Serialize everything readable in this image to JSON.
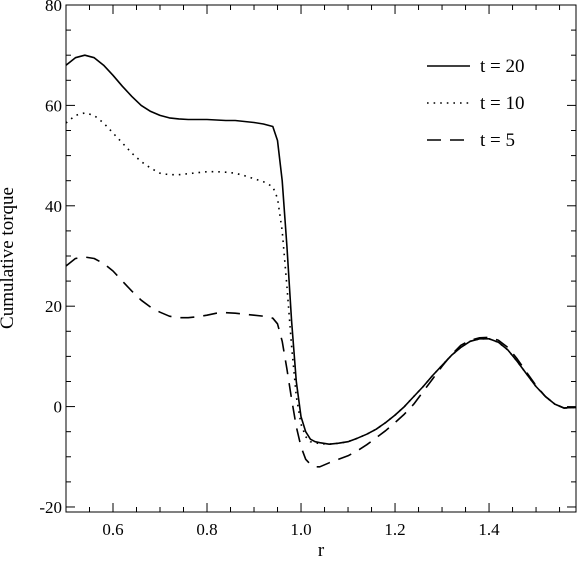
{
  "chart_data": {
    "type": "line",
    "title": "",
    "xlabel": "r",
    "ylabel": "Cumulative torque",
    "xlim": [
      0.5,
      1.585
    ],
    "ylim": [
      -21,
      80
    ],
    "x_ticks": [
      0.6,
      0.8,
      1.0,
      1.2,
      1.4
    ],
    "x_tick_labels": [
      "0.6",
      "0.8",
      "1.0",
      "1.2",
      "1.4"
    ],
    "y_ticks": [
      -20,
      0,
      20,
      40,
      60,
      80
    ],
    "y_tick_labels": [
      "-20",
      "0",
      "20",
      "40",
      "60",
      "80"
    ],
    "grid": false,
    "legend_position": "top-right",
    "series": [
      {
        "name": "t = 20",
        "style": "solid",
        "color": "#000000",
        "x": [
          0.5,
          0.52,
          0.54,
          0.56,
          0.58,
          0.6,
          0.62,
          0.64,
          0.66,
          0.68,
          0.7,
          0.72,
          0.74,
          0.76,
          0.78,
          0.8,
          0.82,
          0.84,
          0.86,
          0.88,
          0.9,
          0.92,
          0.94,
          0.95,
          0.96,
          0.97,
          0.98,
          0.99,
          1.0,
          1.01,
          1.02,
          1.03,
          1.04,
          1.06,
          1.08,
          1.1,
          1.12,
          1.14,
          1.16,
          1.18,
          1.2,
          1.22,
          1.24,
          1.26,
          1.28,
          1.3,
          1.32,
          1.34,
          1.36,
          1.38,
          1.4,
          1.42,
          1.44,
          1.46,
          1.48,
          1.5,
          1.52,
          1.54,
          1.56,
          1.57,
          1.585
        ],
        "y": [
          68,
          69.5,
          70,
          69.5,
          68,
          66,
          63.8,
          61.8,
          60,
          58.8,
          58,
          57.5,
          57.3,
          57.2,
          57.2,
          57.2,
          57.1,
          57,
          57,
          56.8,
          56.6,
          56.3,
          55.8,
          53,
          45,
          32,
          17,
          5,
          -2,
          -5,
          -6.5,
          -7,
          -7.2,
          -7.5,
          -7.3,
          -7,
          -6.3,
          -5.5,
          -4.5,
          -3.2,
          -1.7,
          0,
          2,
          4,
          6.2,
          8.2,
          10.2,
          11.8,
          13,
          13.5,
          13.5,
          12.8,
          11.3,
          9,
          6.5,
          4,
          2,
          0.5,
          -0.3,
          -0.2,
          -0.2
        ]
      },
      {
        "name": "t = 10",
        "style": "dotted",
        "color": "#000000",
        "x": [
          0.5,
          0.52,
          0.54,
          0.56,
          0.58,
          0.6,
          0.62,
          0.64,
          0.66,
          0.68,
          0.7,
          0.72,
          0.74,
          0.76,
          0.78,
          0.8,
          0.82,
          0.84,
          0.86,
          0.88,
          0.9,
          0.92,
          0.94,
          0.95,
          0.96,
          0.97,
          0.98,
          0.99,
          1.0,
          1.01,
          1.02,
          1.03,
          1.04,
          1.06,
          1.08,
          1.1,
          1.12,
          1.14,
          1.16,
          1.18,
          1.2,
          1.22,
          1.24,
          1.26,
          1.28,
          1.3,
          1.32,
          1.34,
          1.36,
          1.38,
          1.4,
          1.42,
          1.44,
          1.46,
          1.48,
          1.5,
          1.52,
          1.54,
          1.56,
          1.57,
          1.585
        ],
        "y": [
          56.5,
          58,
          58.5,
          58,
          56.5,
          54.5,
          52.5,
          50.5,
          48.8,
          47.5,
          46.5,
          46.2,
          46.2,
          46.4,
          46.6,
          46.8,
          46.8,
          46.7,
          46.5,
          46,
          45.4,
          44.8,
          43.8,
          41.5,
          35,
          24,
          12,
          2,
          -3.5,
          -6,
          -7,
          -7.2,
          -7.4,
          -7.5,
          -7.3,
          -7,
          -6.3,
          -5.5,
          -4.5,
          -3.2,
          -1.7,
          0,
          2,
          4,
          6.2,
          8.2,
          10.2,
          11.8,
          13,
          13.5,
          13.5,
          12.8,
          11.3,
          9,
          6.5,
          4,
          2,
          0.5,
          -0.3,
          -0.2,
          -0.2
        ]
      },
      {
        "name": "t = 5",
        "style": "dashed",
        "color": "#000000",
        "x": [
          0.5,
          0.52,
          0.54,
          0.56,
          0.58,
          0.6,
          0.62,
          0.64,
          0.66,
          0.68,
          0.7,
          0.72,
          0.74,
          0.76,
          0.78,
          0.8,
          0.82,
          0.84,
          0.86,
          0.88,
          0.9,
          0.92,
          0.94,
          0.95,
          0.96,
          0.97,
          0.98,
          0.99,
          1.0,
          1.01,
          1.02,
          1.03,
          1.04,
          1.06,
          1.08,
          1.1,
          1.12,
          1.14,
          1.16,
          1.18,
          1.2,
          1.22,
          1.24,
          1.26,
          1.28,
          1.3,
          1.32,
          1.34,
          1.36,
          1.38,
          1.4,
          1.42,
          1.44,
          1.46,
          1.48,
          1.5,
          1.52,
          1.54,
          1.56,
          1.57,
          1.585
        ],
        "y": [
          28,
          29.5,
          29.8,
          29.5,
          28.5,
          27,
          25,
          23,
          21.2,
          19.8,
          18.8,
          18,
          17.7,
          17.7,
          17.9,
          18.2,
          18.6,
          18.7,
          18.6,
          18.4,
          18.2,
          18,
          17.6,
          16.5,
          13,
          7.5,
          1.5,
          -4,
          -8,
          -10.5,
          -11.5,
          -12,
          -12,
          -11.2,
          -10.5,
          -9.8,
          -8.8,
          -7.6,
          -6.2,
          -4.8,
          -3.2,
          -1.5,
          0.5,
          3,
          5.5,
          8,
          10.3,
          12.2,
          13.2,
          13.7,
          13.8,
          13.2,
          11.8,
          9.5,
          6.8,
          4.2,
          2,
          0.5,
          -0.3,
          -0.2,
          -0.2
        ]
      }
    ]
  }
}
